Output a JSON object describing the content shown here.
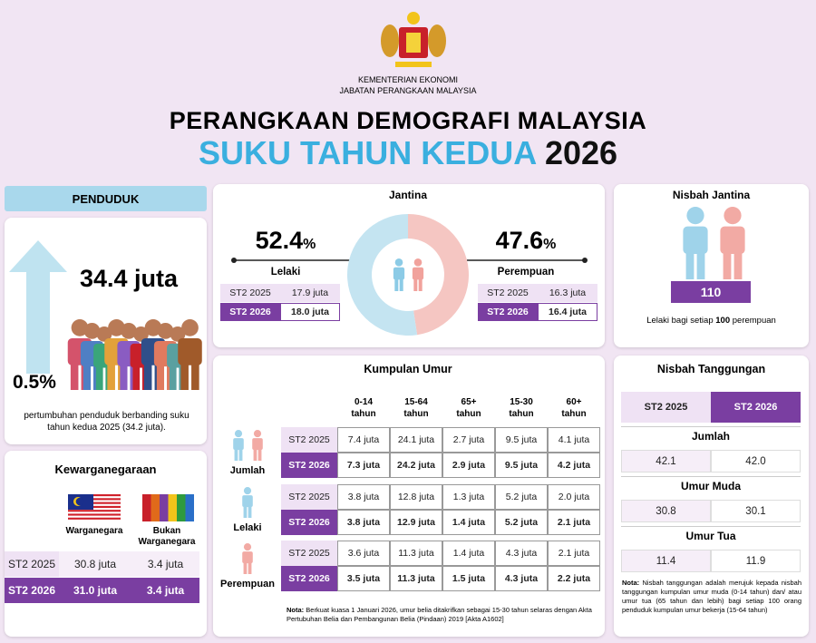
{
  "header": {
    "ministry": "KEMENTERIAN EKONOMI",
    "department": "JABATAN PERANGKAAN MALAYSIA",
    "title": "PERANGKAAN DEMOGRAFI MALAYSIA",
    "subtitle": "SUKU TAHUN KEDUA",
    "year": "2026"
  },
  "penduduk": {
    "title": "PENDUDUK",
    "total": "34.4 juta",
    "growth": "0.5%",
    "note": "pertumbuhan penduduk berbanding suku tahun kedua 2025 (34.2 juta)."
  },
  "jantina": {
    "title": "Jantina",
    "male": {
      "percent": 52.4,
      "unit": "%",
      "label": "Lelaki",
      "rows": [
        [
          "ST2 2025",
          "17.9 juta"
        ],
        [
          "ST2 2026",
          "18.0 juta"
        ]
      ]
    },
    "female": {
      "percent": 47.6,
      "unit": "%",
      "label": "Perempuan",
      "rows": [
        [
          "ST2 2025",
          "16.3 juta"
        ],
        [
          "ST2 2026",
          "16.4 juta"
        ]
      ]
    }
  },
  "nisbah_jantina": {
    "title": "Nisbah Jantina",
    "value": "110",
    "note_pre": "Lelaki bagi setiap",
    "note_bold": "100",
    "note_post": "perempuan"
  },
  "kewarganegaraan": {
    "title": "Kewarganegaraan",
    "columns": [
      "Warganegara",
      "Bukan Warganegara"
    ],
    "rows": [
      [
        "ST2 2025",
        "30.8 juta",
        "3.4 juta"
      ],
      [
        "ST2 2026",
        "31.0 juta",
        "3.4 juta"
      ]
    ]
  },
  "kumpulan_umur": {
    "title": "Kumpulan Umur",
    "columns": [
      "0-14 tahun",
      "15-64 tahun",
      "65+ tahun",
      "15-30 tahun",
      "60+ tahun"
    ],
    "groups": [
      {
        "label": "Jumlah",
        "rows": [
          [
            "ST2 2025",
            "7.4 juta",
            "24.1 juta",
            "2.7 juta",
            "9.5 juta",
            "4.1 juta"
          ],
          [
            "ST2 2026",
            "7.3 juta",
            "24.2 juta",
            "2.9 juta",
            "9.5 juta",
            "4.2 juta"
          ]
        ]
      },
      {
        "label": "Lelaki",
        "rows": [
          [
            "ST2 2025",
            "3.8 juta",
            "12.8 juta",
            "1.3 juta",
            "5.2 juta",
            "2.0 juta"
          ],
          [
            "ST2 2026",
            "3.8 juta",
            "12.9 juta",
            "1.4 juta",
            "5.2 juta",
            "2.1 juta"
          ]
        ]
      },
      {
        "label": "Perempuan",
        "rows": [
          [
            "ST2 2025",
            "3.6 juta",
            "11.3 juta",
            "1.4 juta",
            "4.3 juta",
            "2.1 juta"
          ],
          [
            "ST2 2026",
            "3.5 juta",
            "11.3 juta",
            "1.5 juta",
            "4.3 juta",
            "2.2 juta"
          ]
        ]
      }
    ],
    "note_label": "Nota:",
    "note": "Berkuat kuasa 1 Januari 2026, umur belia ditakrifkan sebagai 15-30 tahun selaras dengan Akta Pertubuhan Belia dan Pembangunan Belia (Pindaan) 2019 [Akta A1602]"
  },
  "nisbah_tanggungan": {
    "title": "Nisbah Tanggungan",
    "columns": [
      "ST2 2025",
      "ST2 2026"
    ],
    "sections": [
      {
        "label": "Jumlah",
        "values": [
          "42.1",
          "42.0"
        ]
      },
      {
        "label": "Umur Muda",
        "values": [
          "30.8",
          "30.1"
        ]
      },
      {
        "label": "Umur Tua",
        "values": [
          "11.4",
          "11.9"
        ]
      }
    ],
    "note_label": "Nota:",
    "note": "Nisbah tanggungan adalah merujuk kepada nisbah tanggungan kumpulan umur muda (0-14 tahun) dan/ atau umur tua (65 tahun dan lebih) bagi setiap 100 orang penduduk kumpulan umur bekerja (15-64 tahun)"
  }
}
